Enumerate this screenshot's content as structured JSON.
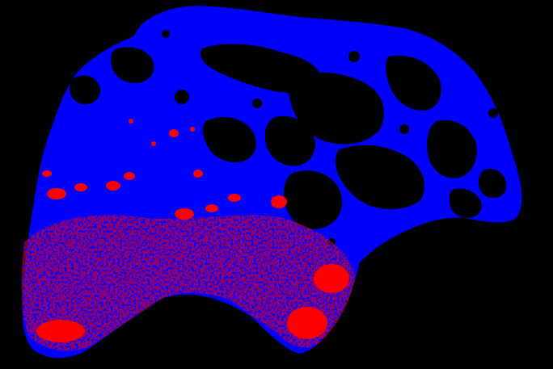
{
  "image": {
    "subject": "segmentation-mask",
    "background_color": "#000000",
    "colors": {
      "region_primary": "#0000FF",
      "region_secondary": "#FF0000",
      "holes": "#000000"
    }
  }
}
